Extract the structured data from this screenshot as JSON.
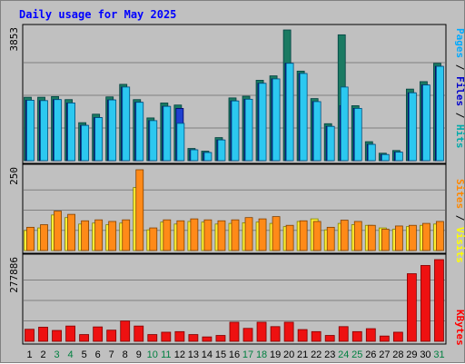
{
  "chart_data": {
    "title": "Daily usage for May 2025",
    "type": "bar",
    "x": [
      "1",
      "2",
      "3",
      "4",
      "5",
      "6",
      "7",
      "8",
      "9",
      "10",
      "11",
      "12",
      "13",
      "14",
      "15",
      "16",
      "17",
      "18",
      "19",
      "20",
      "21",
      "22",
      "23",
      "24",
      "25",
      "26",
      "27",
      "28",
      "29",
      "30",
      "31"
    ],
    "weekend_days": [
      3,
      4,
      10,
      11,
      17,
      18,
      24,
      25,
      31
    ],
    "colors": {
      "hits": "#00aaaa",
      "hits_fill": "#1a7a62",
      "files": "#0000cc",
      "files_fill": "#1f40d0",
      "pages": "#00aaff",
      "pages_fill": "#2cc8f0",
      "visits": "#ffff00",
      "visits_fill": "#ffee33",
      "sites": "#ff8800",
      "sites_fill": "#ff8a18",
      "kbytes": "#ff0000",
      "kbytes_fill": "#ee1111",
      "weekend_label": "#008040",
      "weekday_label": "#000000"
    },
    "panels": [
      {
        "id": "usage",
        "ymax": 3853,
        "max_label": "3853",
        "series": [
          {
            "name": "Pages",
            "values": [
              1780,
              1770,
              1800,
              1700,
              1040,
              1270,
              1790,
              2170,
              1720,
              1180,
              1600,
              1100,
              320,
              240,
              610,
              1760,
              1810,
              2280,
              2410,
              2870,
              2570,
              1740,
              1010,
              2170,
              1540,
              480,
              180,
              250,
              2000,
              2230,
              2780
            ]
          },
          {
            "name": "Files",
            "values": [
              1780,
              1770,
              1800,
              1700,
              1040,
              1270,
              1790,
              2170,
              1720,
              1180,
              1600,
              1540,
              320,
              240,
              610,
              1760,
              1810,
              2280,
              2410,
              2870,
              2570,
              1740,
              1010,
              1620,
              1540,
              480,
              180,
              250,
              2000,
              2230,
              2780
            ]
          },
          {
            "name": "Hits",
            "values": [
              1870,
              1870,
              1890,
              1800,
              1120,
              1370,
              1880,
              2250,
              1800,
              1260,
              1700,
              1640,
              360,
              280,
              680,
              1850,
              1900,
              2370,
              2500,
              3853,
              2640,
              1830,
              1090,
              3710,
              1620,
              560,
              220,
              300,
              2110,
              2330,
              2870
            ]
          }
        ]
      },
      {
        "id": "visitors",
        "ymax": 250,
        "max_label": "250",
        "series": [
          {
            "name": "Visits",
            "values": [
              62,
              70,
              110,
              102,
              82,
              85,
              80,
              85,
              195,
              64,
              88,
              82,
              90,
              88,
              82,
              84,
              86,
              88,
              84,
              74,
              90,
              98,
              64,
              84,
              80,
              78,
              70,
              66,
              74,
              78,
              82
            ]
          },
          {
            "name": "Sites",
            "values": [
              72,
              80,
              122,
              112,
              92,
              95,
              90,
              95,
              250,
              70,
              95,
              92,
              98,
              95,
              92,
              95,
              102,
              98,
              105,
              78,
              92,
              90,
              72,
              94,
              90,
              78,
              66,
              76,
              78,
              84,
              90
            ]
          }
        ]
      },
      {
        "id": "traffic",
        "ymax": 277886,
        "max_label": "277886",
        "series": [
          {
            "name": "KBytes",
            "values": [
              41000,
              48000,
              37000,
              52000,
              23000,
              49000,
              38000,
              69000,
              52000,
              23000,
              31000,
              33000,
              23000,
              15000,
              20000,
              65000,
              44000,
              65000,
              50000,
              65000,
              40000,
              33000,
              20000,
              50000,
              33000,
              43000,
              18000,
              31000,
              230000,
              258000,
              277886
            ]
          }
        ]
      }
    ],
    "right_legends": [
      {
        "panel": "usage",
        "parts": [
          {
            "text": "Pages",
            "color": "#00aaff"
          },
          {
            "text": " / ",
            "color": "#000000"
          },
          {
            "text": "Files",
            "color": "#0000cc"
          },
          {
            "text": " / ",
            "color": "#000000"
          },
          {
            "text": "Hits",
            "color": "#00aaaa"
          }
        ]
      },
      {
        "panel": "visitors",
        "parts": [
          {
            "text": "Sites",
            "color": "#ff8800"
          },
          {
            "text": " / ",
            "color": "#000000"
          },
          {
            "text": "Visits",
            "color": "#ffff00"
          }
        ]
      },
      {
        "panel": "traffic",
        "parts": [
          {
            "text": "KBytes",
            "color": "#ff0000"
          }
        ]
      }
    ]
  }
}
